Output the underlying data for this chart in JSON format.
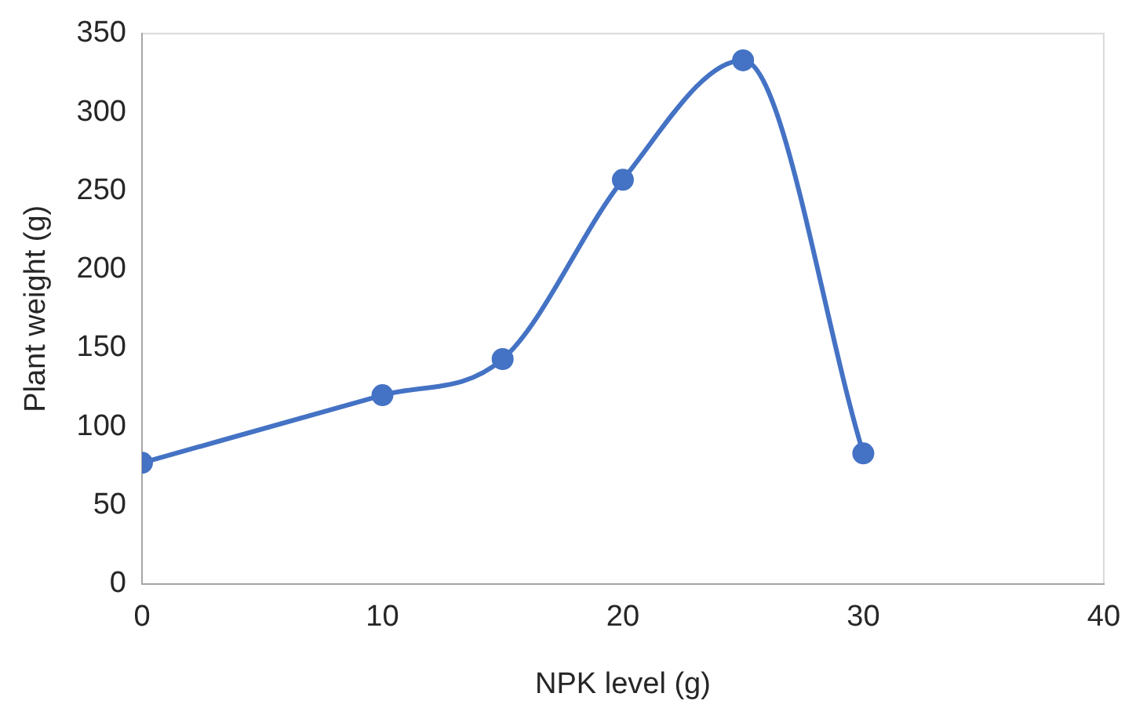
{
  "chart_data": {
    "type": "line",
    "xlabel": "NPK level (g)",
    "ylabel": "Plant weight (g)",
    "x": [
      0,
      10,
      15,
      20,
      25,
      30
    ],
    "series": [
      {
        "color": "#4472c4",
        "values": [
          77,
          120,
          143,
          257,
          333,
          83
        ]
      }
    ],
    "xlim": [
      0,
      40
    ],
    "xticks": [
      0,
      10,
      20,
      30,
      40
    ],
    "ylim": [
      0,
      350
    ],
    "yticks": [
      0,
      50,
      100,
      150,
      200,
      250,
      300,
      350
    ],
    "grid": false,
    "legend": false,
    "marker": "circle",
    "line_style": "solid"
  }
}
